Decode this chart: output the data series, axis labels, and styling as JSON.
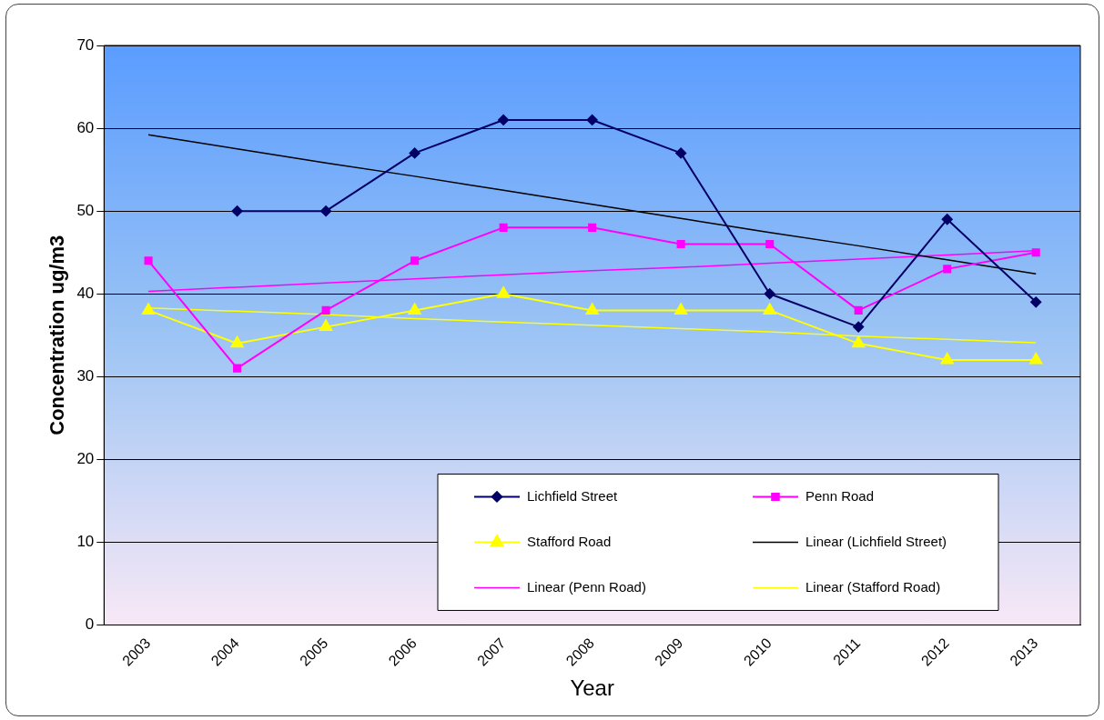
{
  "chart_data": {
    "type": "line",
    "xlabel": "Year",
    "ylabel": "Concentration ug/m3",
    "categories": [
      "2003",
      "2004",
      "2005",
      "2006",
      "2007",
      "2008",
      "2009",
      "2010",
      "2011",
      "2012",
      "2013"
    ],
    "ylim": [
      0,
      70
    ],
    "yticks": [
      0,
      10,
      20,
      30,
      40,
      50,
      60,
      70
    ],
    "grid": "y",
    "legend": "bottom right",
    "series": [
      {
        "name": "Lichfield Street",
        "color": "#000066",
        "marker": "diamond",
        "values": [
          null,
          50,
          50,
          57,
          61,
          61,
          57,
          40,
          36,
          49,
          39
        ]
      },
      {
        "name": "Penn Road",
        "color": "#ff00ff",
        "marker": "square",
        "values": [
          44,
          31,
          38,
          44,
          48,
          48,
          46,
          46,
          38,
          43,
          45
        ]
      },
      {
        "name": "Stafford Road",
        "color": "#ffff00",
        "marker": "triangle",
        "values": [
          38,
          34,
          36,
          38,
          40,
          38,
          38,
          38,
          34,
          32,
          32
        ]
      },
      {
        "name": "Linear (Lichfield Street)",
        "color": "#000000",
        "marker": "none",
        "values": [
          59.2,
          57.5,
          55.8,
          54.2,
          52.5,
          50.8,
          49.1,
          47.4,
          45.8,
          44.1,
          42.4
        ]
      },
      {
        "name": "Linear (Penn Road)",
        "color": "#ff00ff",
        "marker": "none",
        "values": [
          40.3,
          40.8,
          41.3,
          41.8,
          42.3,
          42.8,
          43.2,
          43.7,
          44.2,
          44.7,
          45.2
        ]
      },
      {
        "name": "Linear (Stafford Road)",
        "color": "#ffff00",
        "marker": "none",
        "values": [
          38.3,
          37.9,
          37.5,
          37.0,
          36.6,
          36.2,
          35.8,
          35.4,
          34.9,
          34.5,
          34.1
        ]
      }
    ]
  }
}
